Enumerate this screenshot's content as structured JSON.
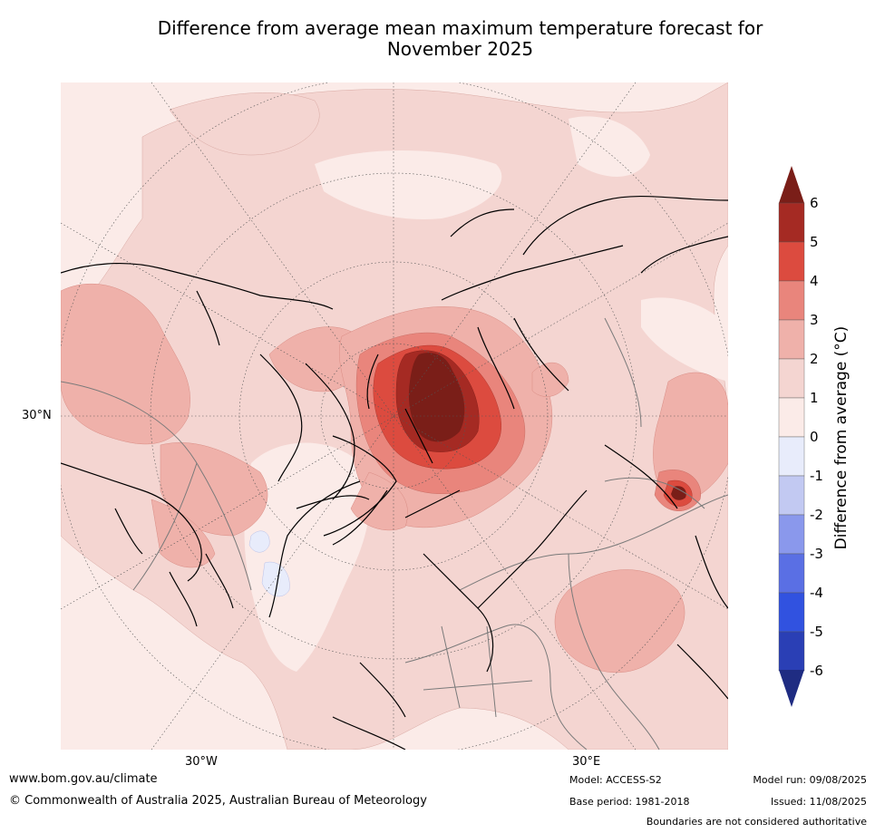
{
  "title": {
    "line1": "Difference from average mean maximum temperature forecast for",
    "line2": "November 2025"
  },
  "map": {
    "projection": "north-polar-stereographic",
    "lat_labels": [
      "30°N"
    ],
    "lon_labels": [
      "30°W",
      "30°E"
    ],
    "colors": {
      "ocean_background": "#fbebe8",
      "coastline": "#000000",
      "borders": "#7a7a7a",
      "gridlines": "#555555"
    },
    "anomaly_regions": [
      {
        "region": "Arctic Ocean / Kara-Barents Sea",
        "level": "5 to 6+"
      },
      {
        "region": "Central Siberia",
        "level": "2 to 3"
      },
      {
        "region": "Northern Canada / Hudson Bay",
        "level": "2 to 3"
      },
      {
        "region": "Alaska",
        "level": "2 to 3"
      },
      {
        "region": "Northeast China",
        "level": "4 to 5"
      },
      {
        "region": "Central Asia",
        "level": "2 to 3"
      },
      {
        "region": "Europe",
        "level": "1 to 2"
      },
      {
        "region": "North Atlantic south of Greenland",
        "level": "0 to -1"
      }
    ]
  },
  "colorbar": {
    "label": "Difference from average (°C)",
    "ticks": [
      "6",
      "5",
      "4",
      "3",
      "2",
      "1",
      "0",
      "-1",
      "-2",
      "-3",
      "-4",
      "-5",
      "-6"
    ],
    "colors": [
      "#a52a23",
      "#dc4b3f",
      "#e9857c",
      "#efb1aa",
      "#f4d5d1",
      "#fbebe8",
      "#e8ecfb",
      "#c2c9f2",
      "#8a98ec",
      "#5a6fe4",
      "#3152e0",
      "#2a3fb5"
    ],
    "extend_high_color": "#7a1e18",
    "extend_low_color": "#1f2c82"
  },
  "footer": {
    "website": "www.bom.gov.au/climate",
    "copyright": "© Commonwealth of Australia 2025, Australian Bureau of Meteorology",
    "model": "Model: ACCESS-S2",
    "base_period": "Base period: 1981-2018",
    "model_run": "Model run: 09/08/2025",
    "issued": "Issued: 11/08/2025",
    "disclaimer": "Boundaries are not considered authoritative"
  }
}
